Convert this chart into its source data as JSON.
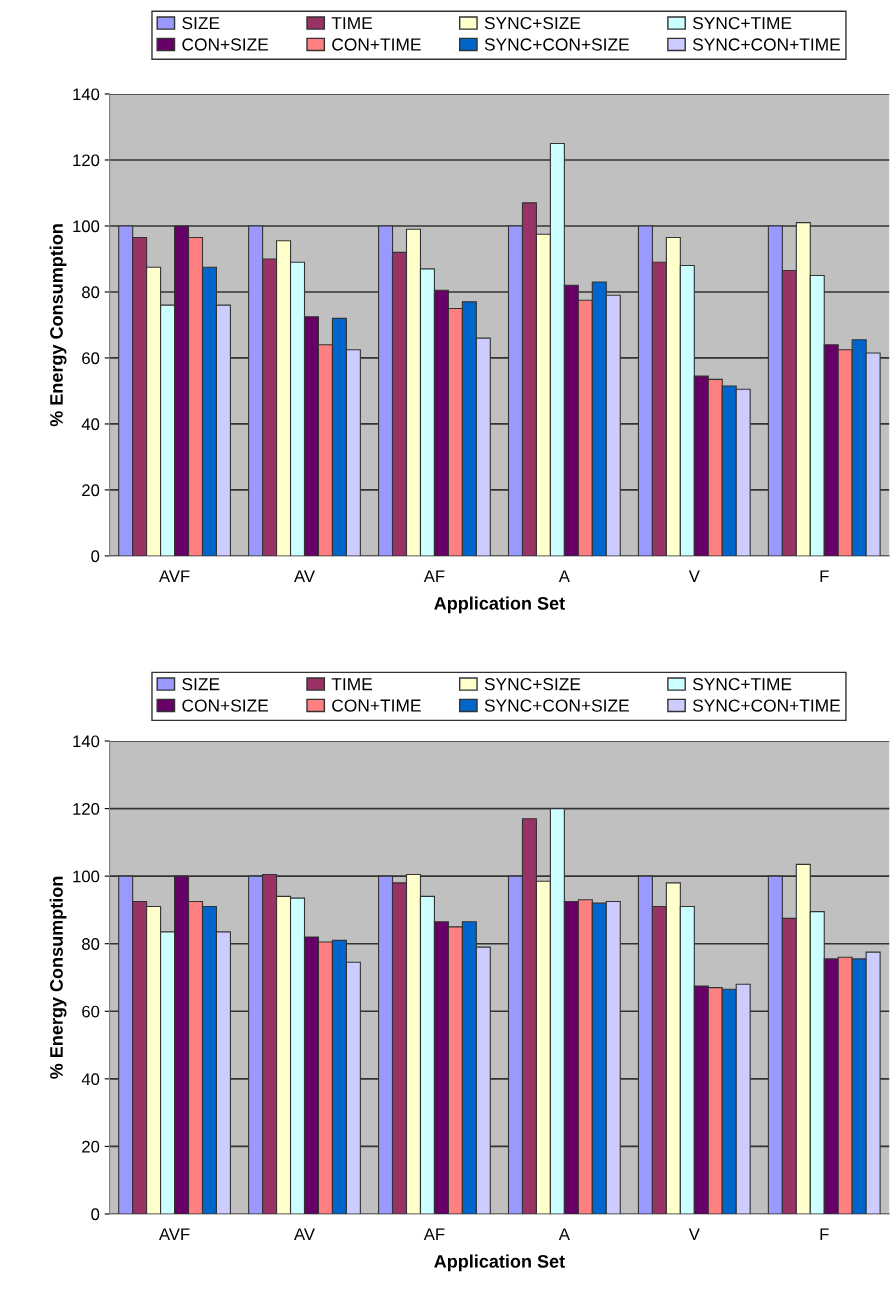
{
  "chart_data": [
    {
      "type": "bar",
      "categories": [
        "AVF",
        "AV",
        "AF",
        "A",
        "V",
        "F"
      ],
      "xlabel": "Application Set",
      "ylabel": "% Energy Consumption",
      "ylim": [
        0,
        140
      ],
      "yticks": [
        0,
        20,
        40,
        60,
        80,
        100,
        120,
        140
      ],
      "grid": "y",
      "legend": "top",
      "series": [
        {
          "name": "SIZE",
          "color": "#9999ff",
          "values": [
            100,
            100,
            100,
            100,
            100,
            100
          ]
        },
        {
          "name": "TIME",
          "color": "#993366",
          "values": [
            96.5,
            90,
            92,
            107,
            89,
            86.5
          ]
        },
        {
          "name": "SYNC+SIZE",
          "color": "#ffffcc",
          "values": [
            87.5,
            95.5,
            99,
            97.5,
            96.5,
            101
          ]
        },
        {
          "name": "SYNC+TIME",
          "color": "#ccffff",
          "values": [
            76,
            89,
            87,
            125,
            88,
            85
          ]
        },
        {
          "name": "CON+SIZE",
          "color": "#660066",
          "values": [
            100,
            72.5,
            80.5,
            82,
            54.5,
            64
          ]
        },
        {
          "name": "CON+TIME",
          "color": "#ff8080",
          "values": [
            96.5,
            64,
            75,
            77.5,
            53.5,
            62.5
          ]
        },
        {
          "name": "SYNC+CON+SIZE",
          "color": "#0066cc",
          "values": [
            87.5,
            72,
            77,
            83,
            51.5,
            65.5
          ]
        },
        {
          "name": "SYNC+CON+TIME",
          "color": "#ccccff",
          "values": [
            76,
            62.5,
            66,
            79,
            50.5,
            61.5
          ]
        }
      ]
    },
    {
      "type": "bar",
      "categories": [
        "AVF",
        "AV",
        "AF",
        "A",
        "V",
        "F"
      ],
      "xlabel": "Application Set",
      "ylabel": "% Energy Consumption",
      "ylim": [
        0,
        140
      ],
      "yticks": [
        0,
        20,
        40,
        60,
        80,
        100,
        120,
        140
      ],
      "grid": "y",
      "legend": "top",
      "series": [
        {
          "name": "SIZE",
          "color": "#9999ff",
          "values": [
            100,
            100,
            100,
            100,
            100,
            100
          ]
        },
        {
          "name": "TIME",
          "color": "#993366",
          "values": [
            92.5,
            100.5,
            98,
            117,
            91,
            87.5
          ]
        },
        {
          "name": "SYNC+SIZE",
          "color": "#ffffcc",
          "values": [
            91,
            94,
            100.5,
            98.5,
            98,
            103.5
          ]
        },
        {
          "name": "SYNC+TIME",
          "color": "#ccffff",
          "values": [
            83.5,
            93.5,
            94,
            120,
            91,
            89.5
          ]
        },
        {
          "name": "CON+SIZE",
          "color": "#660066",
          "values": [
            100,
            82,
            86.5,
            92.5,
            67.5,
            75.5
          ]
        },
        {
          "name": "CON+TIME",
          "color": "#ff8080",
          "values": [
            92.5,
            80.5,
            85,
            93,
            67,
            76
          ]
        },
        {
          "name": "SYNC+CON+SIZE",
          "color": "#0066cc",
          "values": [
            91,
            81,
            86.5,
            92,
            66.5,
            75.5
          ]
        },
        {
          "name": "SYNC+CON+TIME",
          "color": "#ccccff",
          "values": [
            83.5,
            74.5,
            79,
            92.5,
            68,
            77.5
          ]
        }
      ]
    }
  ]
}
